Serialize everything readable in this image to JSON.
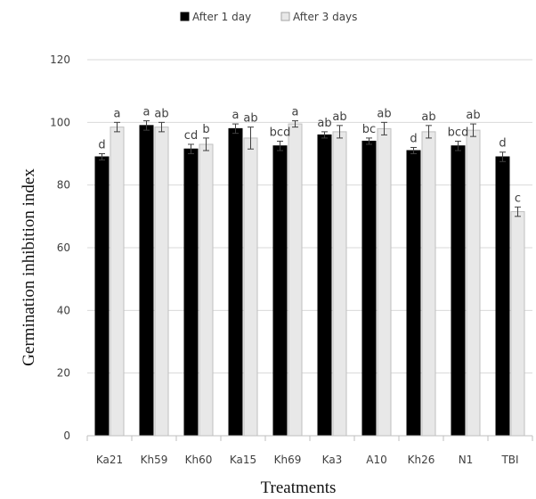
{
  "chart_data": {
    "type": "bar",
    "title": "",
    "xlabel": "Treatments",
    "ylabel": "Germination inhibition index",
    "ylim": [
      0,
      120
    ],
    "yticks": [
      0,
      20,
      40,
      60,
      80,
      100,
      120
    ],
    "grid": true,
    "legend_position": "top",
    "categories": [
      "Ka21",
      "Kh59",
      "Kh60",
      "Ka15",
      "Kh69",
      "Ka3",
      "A10",
      "Kh26",
      "N1",
      "TBI"
    ],
    "series": [
      {
        "name": "After 1 day",
        "color": "#000000",
        "values": [
          89,
          99,
          91.5,
          98,
          92.5,
          96,
          94,
          91,
          92.5,
          89
        ],
        "errors": [
          1,
          1.5,
          1.5,
          1.5,
          1.5,
          1,
          1,
          1,
          1.5,
          1.5
        ],
        "labels": [
          "d",
          "a",
          "cd",
          "a",
          "bcd",
          "ab",
          "bc",
          "d",
          "bcd",
          "d"
        ]
      },
      {
        "name": "After 3 days",
        "color": "#e8e8e8",
        "values": [
          98.5,
          98.5,
          93,
          95,
          99.5,
          97,
          98,
          97,
          97.5,
          71.5
        ],
        "errors": [
          1.5,
          1.5,
          2,
          3.5,
          1,
          2,
          2,
          2,
          2,
          1.5
        ],
        "labels": [
          "a",
          "ab",
          "b",
          "ab",
          "a",
          "ab",
          "ab",
          "ab",
          "ab",
          "c"
        ]
      }
    ]
  }
}
